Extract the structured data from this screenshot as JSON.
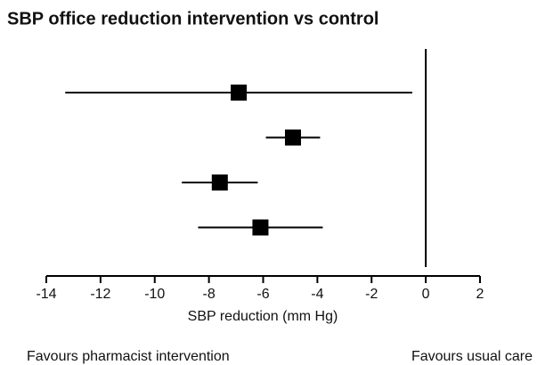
{
  "chart_data": {
    "type": "forest",
    "title": "SBP office reduction intervention vs  control",
    "x_label": "SBP reduction (mm Hg)",
    "annotations": [
      "Favours pharmacist intervention",
      "Favours usual care"
    ],
    "values": [
      -6.9,
      -4.9,
      -7.6,
      -6.1
    ],
    "lower": [
      -13.3,
      -5.9,
      -9.0,
      -8.4
    ],
    "upper": [
      -0.5,
      -3.9,
      -6.2,
      -3.8
    ],
    "color": "#000000",
    "reference_line": 0,
    "xlim": [
      -14,
      2
    ],
    "xticks": [
      -14,
      -12,
      -10,
      -8,
      -6,
      -4,
      -2,
      0,
      2
    ]
  }
}
